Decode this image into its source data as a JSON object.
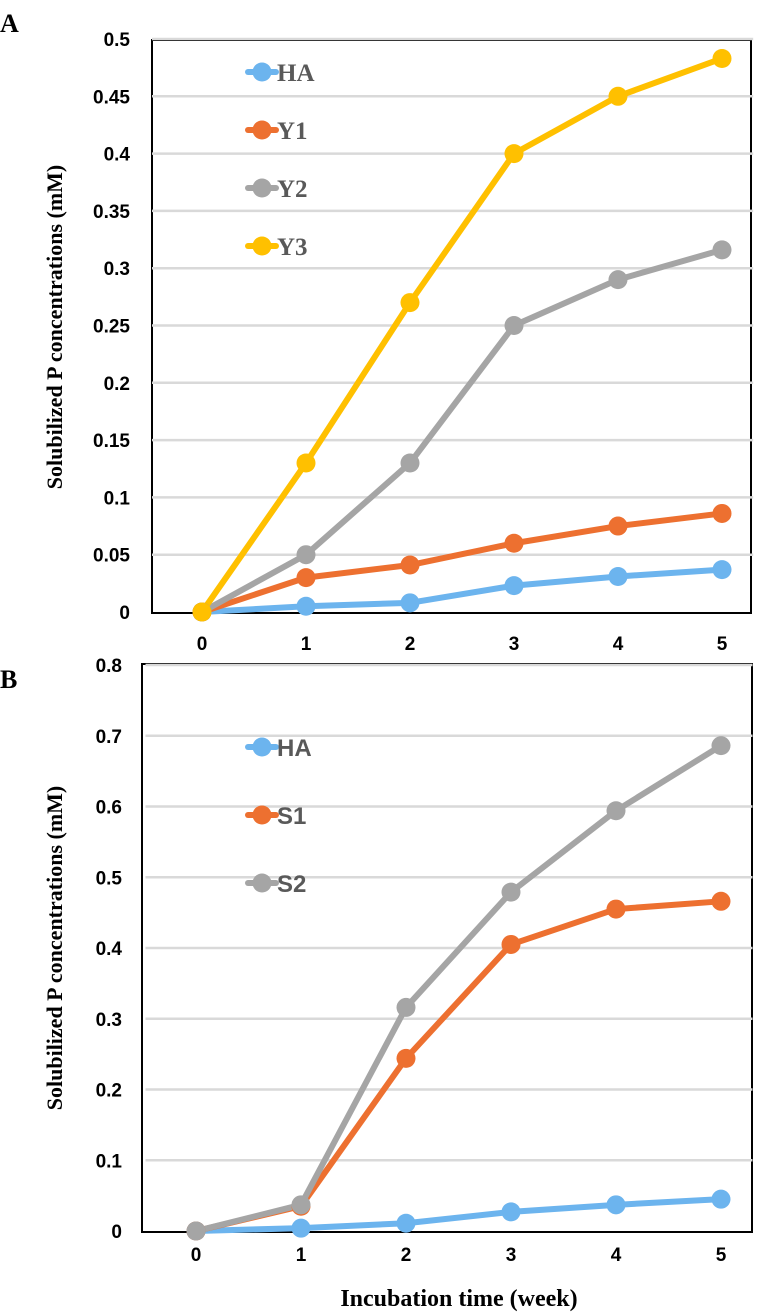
{
  "chart_data": [
    {
      "panel": "A",
      "type": "line",
      "x": [
        0,
        1,
        2,
        3,
        4,
        5
      ],
      "xticks": [
        "0",
        "1",
        "2",
        "3",
        "4",
        "5"
      ],
      "yticks": [
        "0",
        "0.05",
        "0.1",
        "0.15",
        "0.2",
        "0.25",
        "0.3",
        "0.35",
        "0.4",
        "0.45",
        "0.5"
      ],
      "ylim": [
        0,
        0.5
      ],
      "ylabel": "Solubilized P concentrations (mM)",
      "xlabel": "",
      "series": [
        {
          "name": "HA",
          "color": "#6CB4EE",
          "values": [
            0,
            0.005,
            0.008,
            0.023,
            0.031,
            0.037
          ]
        },
        {
          "name": "Y1",
          "color": "#ED7030",
          "values": [
            0,
            0.03,
            0.041,
            0.06,
            0.075,
            0.086
          ]
        },
        {
          "name": "Y2",
          "color": "#A5A5A5",
          "values": [
            0,
            0.05,
            0.13,
            0.25,
            0.29,
            0.316
          ]
        },
        {
          "name": "Y3",
          "color": "#FFC000",
          "values": [
            0,
            0.13,
            0.27,
            0.4,
            0.45,
            0.483
          ]
        }
      ]
    },
    {
      "panel": "B",
      "type": "line",
      "x": [
        0,
        1,
        2,
        3,
        4,
        5
      ],
      "xticks": [
        "0",
        "1",
        "2",
        "3",
        "4",
        "5"
      ],
      "yticks": [
        "0",
        "0.1",
        "0.2",
        "0.3",
        "0.4",
        "0.5",
        "0.6",
        "0.7",
        "0.8"
      ],
      "ylim": [
        0,
        0.8
      ],
      "ylabel": "Solubilized P concentrations (mM)",
      "xlabel": "Incubation time (week)",
      "series": [
        {
          "name": "HA",
          "color": "#6CB4EE",
          "values": [
            0,
            0.004,
            0.011,
            0.027,
            0.037,
            0.045
          ]
        },
        {
          "name": "S1",
          "color": "#ED7030",
          "values": [
            0,
            0.035,
            0.244,
            0.405,
            0.455,
            0.466
          ]
        },
        {
          "name": "S2",
          "color": "#A5A5A5",
          "values": [
            0,
            0.037,
            0.316,
            0.479,
            0.594,
            0.686
          ]
        }
      ]
    }
  ]
}
